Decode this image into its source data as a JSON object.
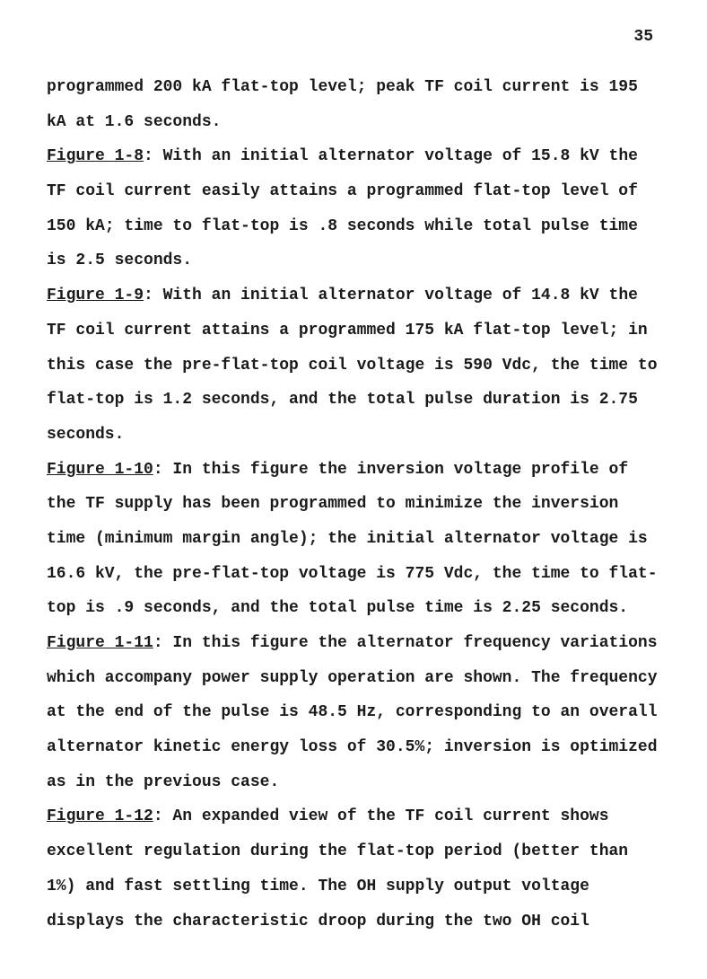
{
  "page": {
    "number": "35",
    "font_family": "Courier New",
    "font_size_pt": 12,
    "line_spacing": "double",
    "text_color": "#1a1a1a",
    "background_color": "#ffffff"
  },
  "paragraphs": {
    "intro": {
      "text": "programmed 200 kA flat-top level; peak TF coil current is 195 kA at 1.6 seconds."
    },
    "fig_1_8": {
      "label": "Figure 1-8",
      "text": ":  With an initial alternator voltage of 15.8 kV the TF coil current easily attains a programmed flat-top level of 150 kA; time to flat-top is .8 seconds while total pulse time is 2.5 seconds."
    },
    "fig_1_9": {
      "label": "Figure 1-9",
      "text": ":  With an initial alternator voltage of 14.8 kV the TF coil current attains a programmed 175 kA flat-top level; in this case the pre-flat-top coil voltage is 590 Vdc, the time to flat-top is 1.2 seconds, and the total pulse duration is 2.75 seconds."
    },
    "fig_1_10": {
      "label": "Figure 1-10",
      "text": ":  In this figure the inversion voltage profile of the TF supply has been programmed to minimize the inversion time (minimum margin angle); the initial alternator voltage is 16.6 kV, the pre-flat-top voltage is 775 Vdc, the time to flat-top is .9 seconds, and the total pulse time is 2.25 seconds."
    },
    "fig_1_11": {
      "label": "Figure 1-11",
      "text": ":  In this figure the alternator frequency variations which accompany power supply operation are shown. The frequency at the end of the pulse is 48.5 Hz, corresponding to an overall alternator kinetic energy loss of 30.5%; inversion is optimized as in the previous case."
    },
    "fig_1_12": {
      "label": "Figure 1-12",
      "text": ":  An expanded view of the TF coil current shows excellent regulation during the flat-top period (better than 1%) and fast settling time.  The OH supply output voltage displays the characteristic droop during the two OH coil"
    }
  }
}
